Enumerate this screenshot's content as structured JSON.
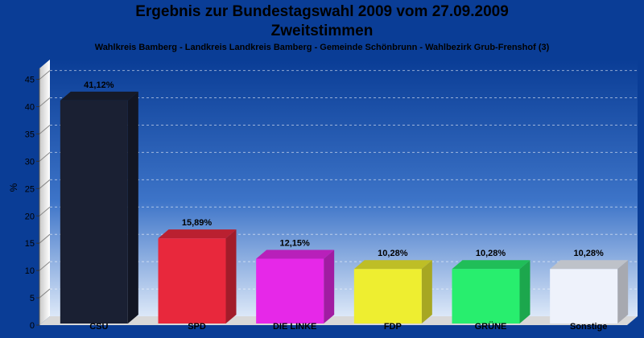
{
  "chart_data": {
    "type": "bar",
    "title": "Ergebnis zur Bundestagswahl 2009 vom 27.09.2009",
    "subtitle_line": "Zweitstimmen",
    "caption": "Wahlkreis Bamberg - Landkreis Landkreis Bamberg - Gemeinde Schönbrunn - Wahlbezirk Grub-Frenshof (3)",
    "ylabel": "%",
    "xlabel": "",
    "ylim": [
      0,
      47
    ],
    "yticks": [
      0,
      5,
      10,
      15,
      20,
      25,
      30,
      35,
      40,
      45
    ],
    "grid": true,
    "categories": [
      "CSU",
      "SPD",
      "DIE LINKE",
      "FDP",
      "GRÜNE",
      "Sonstige"
    ],
    "values": [
      41.12,
      15.89,
      12.15,
      10.28,
      10.28,
      10.28
    ],
    "value_labels": [
      "41,12%",
      "15,89%",
      "12,15%",
      "10,28%",
      "10,28%",
      "10,28%"
    ],
    "colors": [
      "#1a2033",
      "#e8283c",
      "#e628e8",
      "#eeee30",
      "#28ee6e",
      "#eef2fb"
    ]
  }
}
